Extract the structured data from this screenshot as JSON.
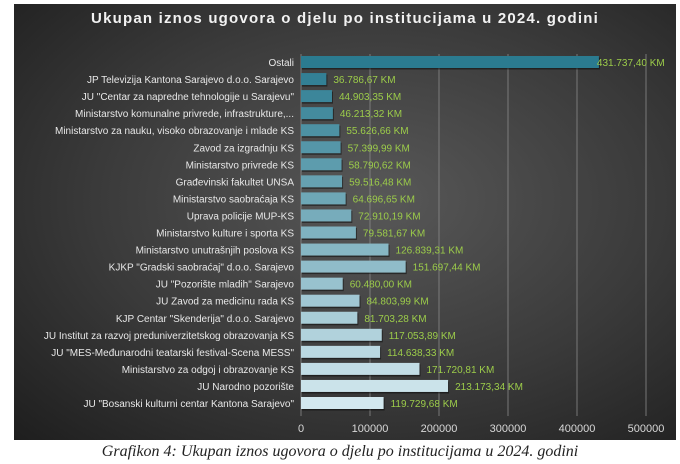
{
  "chart_data": {
    "type": "bar",
    "orientation": "horizontal",
    "title": "Ukupan iznos ugovora o djelu po institucijama u 2024. godini",
    "categories": [
      "Ostali",
      "JP Televizija Kantona Sarajevo d.o.o. Sarajevo",
      "JU \"Centar za napredne tehnologije u Sarajevu\"",
      "Ministarstvo komunalne privrede, infrastrukture,...",
      "Ministarstvo za nauku, visoko obrazovanje i mlade KS",
      "Zavod za izgradnju KS",
      "Ministarstvo privrede KS",
      "Građevinski fakultet UNSA",
      "Ministarstvo saobraćaja KS",
      "Uprava policije MUP-KS",
      "Ministarstvo kulture i sporta KS",
      "Ministarstvo unutrašnjih poslova KS",
      "KJKP \"Gradski saobraćaj\" d.o.o. Sarajevo",
      "JU \"Pozorište mladih\" Sarajevo",
      "JU Zavod za medicinu rada KS",
      "KJP Centar \"Skenderija\" d.o.o. Sarajevo",
      "JU Institut za razvoj preduniverzitetskog obrazovanja KS",
      "JU \"MES-Međunarodni teatarski festival-Scena MESS\"",
      "Ministarstvo za odgoj i obrazovanje KS",
      "JU Narodno pozorište",
      "JU \"Bosanski kulturni centar Kantona Sarajevo\""
    ],
    "values": [
      431737.4,
      36786.67,
      44903.35,
      46213.32,
      55626.66,
      57399.99,
      58790.62,
      59516.48,
      64696.65,
      72910.19,
      79581.67,
      126839.31,
      151697.44,
      60480.0,
      84803.99,
      81703.28,
      117053.89,
      114638.33,
      171720.81,
      213173.34,
      119729.68
    ],
    "data_labels": [
      "431.737,40 KM",
      "36.786,67 KM",
      "44.903,35 KM",
      "46.213,32 KM",
      "55.626,66 KM",
      "57.399,99 KM",
      "58.790,62 KM",
      "59.516,48 KM",
      "64.696,65 KM",
      "72.910,19 KM",
      "79.581,67 KM",
      "126.839,31 KM",
      "151.697,44 KM",
      "60.480,00 KM",
      "84.803,99 KM",
      "81.703,28 KM",
      "117.053,89 KM",
      "114.638,33 KM",
      "171.720,81 KM",
      "213.173,34 KM",
      "119.729,68 KM"
    ],
    "xticks": [
      "0",
      "100000",
      "200000",
      "300000",
      "400000",
      "500000"
    ],
    "xlim": [
      0,
      500000
    ],
    "xlabel": "",
    "ylabel": "",
    "grid": true,
    "legend": "none",
    "colors": {
      "bar_start": "#2b7b90",
      "bar_end": "#d3e8ef",
      "label": "#9ccc4a",
      "text": "#e8e8e8",
      "grid": "#8a8a8a"
    }
  },
  "caption": "Grafikon 4: Ukupan iznos ugovora o djelu po institucijama u 2024. godini"
}
